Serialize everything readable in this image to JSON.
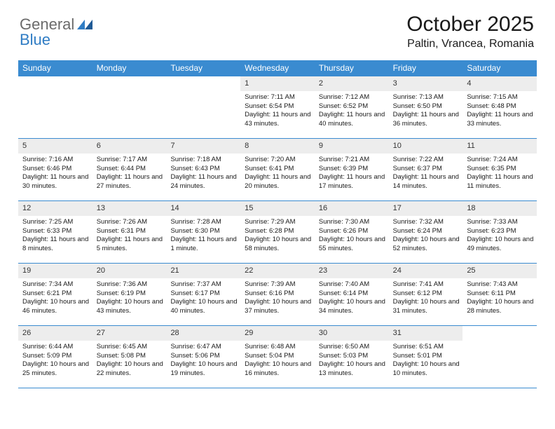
{
  "logo": {
    "part1": "General",
    "part2": "Blue"
  },
  "header": {
    "title": "October 2025",
    "location": "Paltin, Vrancea, Romania"
  },
  "colors": {
    "header_bar": "#3a8bd0",
    "day_num_bg": "#ededed",
    "week_divider": "#3a8bd0",
    "text": "#1a1a1a",
    "logo_text": "#6b6b6b",
    "logo_blue": "#2f7cc4"
  },
  "typography": {
    "title_fontsize": 30,
    "location_fontsize": 16,
    "dow_fontsize": 12,
    "daynum_fontsize": 11,
    "body_fontsize": 9.5
  },
  "daysOfWeek": [
    "Sunday",
    "Monday",
    "Tuesday",
    "Wednesday",
    "Thursday",
    "Friday",
    "Saturday"
  ],
  "weeks": [
    [
      {
        "num": "",
        "sunrise": "",
        "sunset": "",
        "daylight": ""
      },
      {
        "num": "",
        "sunrise": "",
        "sunset": "",
        "daylight": ""
      },
      {
        "num": "",
        "sunrise": "",
        "sunset": "",
        "daylight": ""
      },
      {
        "num": "1",
        "sunrise": "Sunrise: 7:11 AM",
        "sunset": "Sunset: 6:54 PM",
        "daylight": "Daylight: 11 hours and 43 minutes."
      },
      {
        "num": "2",
        "sunrise": "Sunrise: 7:12 AM",
        "sunset": "Sunset: 6:52 PM",
        "daylight": "Daylight: 11 hours and 40 minutes."
      },
      {
        "num": "3",
        "sunrise": "Sunrise: 7:13 AM",
        "sunset": "Sunset: 6:50 PM",
        "daylight": "Daylight: 11 hours and 36 minutes."
      },
      {
        "num": "4",
        "sunrise": "Sunrise: 7:15 AM",
        "sunset": "Sunset: 6:48 PM",
        "daylight": "Daylight: 11 hours and 33 minutes."
      }
    ],
    [
      {
        "num": "5",
        "sunrise": "Sunrise: 7:16 AM",
        "sunset": "Sunset: 6:46 PM",
        "daylight": "Daylight: 11 hours and 30 minutes."
      },
      {
        "num": "6",
        "sunrise": "Sunrise: 7:17 AM",
        "sunset": "Sunset: 6:44 PM",
        "daylight": "Daylight: 11 hours and 27 minutes."
      },
      {
        "num": "7",
        "sunrise": "Sunrise: 7:18 AM",
        "sunset": "Sunset: 6:43 PM",
        "daylight": "Daylight: 11 hours and 24 minutes."
      },
      {
        "num": "8",
        "sunrise": "Sunrise: 7:20 AM",
        "sunset": "Sunset: 6:41 PM",
        "daylight": "Daylight: 11 hours and 20 minutes."
      },
      {
        "num": "9",
        "sunrise": "Sunrise: 7:21 AM",
        "sunset": "Sunset: 6:39 PM",
        "daylight": "Daylight: 11 hours and 17 minutes."
      },
      {
        "num": "10",
        "sunrise": "Sunrise: 7:22 AM",
        "sunset": "Sunset: 6:37 PM",
        "daylight": "Daylight: 11 hours and 14 minutes."
      },
      {
        "num": "11",
        "sunrise": "Sunrise: 7:24 AM",
        "sunset": "Sunset: 6:35 PM",
        "daylight": "Daylight: 11 hours and 11 minutes."
      }
    ],
    [
      {
        "num": "12",
        "sunrise": "Sunrise: 7:25 AM",
        "sunset": "Sunset: 6:33 PM",
        "daylight": "Daylight: 11 hours and 8 minutes."
      },
      {
        "num": "13",
        "sunrise": "Sunrise: 7:26 AM",
        "sunset": "Sunset: 6:31 PM",
        "daylight": "Daylight: 11 hours and 5 minutes."
      },
      {
        "num": "14",
        "sunrise": "Sunrise: 7:28 AM",
        "sunset": "Sunset: 6:30 PM",
        "daylight": "Daylight: 11 hours and 1 minute."
      },
      {
        "num": "15",
        "sunrise": "Sunrise: 7:29 AM",
        "sunset": "Sunset: 6:28 PM",
        "daylight": "Daylight: 10 hours and 58 minutes."
      },
      {
        "num": "16",
        "sunrise": "Sunrise: 7:30 AM",
        "sunset": "Sunset: 6:26 PM",
        "daylight": "Daylight: 10 hours and 55 minutes."
      },
      {
        "num": "17",
        "sunrise": "Sunrise: 7:32 AM",
        "sunset": "Sunset: 6:24 PM",
        "daylight": "Daylight: 10 hours and 52 minutes."
      },
      {
        "num": "18",
        "sunrise": "Sunrise: 7:33 AM",
        "sunset": "Sunset: 6:23 PM",
        "daylight": "Daylight: 10 hours and 49 minutes."
      }
    ],
    [
      {
        "num": "19",
        "sunrise": "Sunrise: 7:34 AM",
        "sunset": "Sunset: 6:21 PM",
        "daylight": "Daylight: 10 hours and 46 minutes."
      },
      {
        "num": "20",
        "sunrise": "Sunrise: 7:36 AM",
        "sunset": "Sunset: 6:19 PM",
        "daylight": "Daylight: 10 hours and 43 minutes."
      },
      {
        "num": "21",
        "sunrise": "Sunrise: 7:37 AM",
        "sunset": "Sunset: 6:17 PM",
        "daylight": "Daylight: 10 hours and 40 minutes."
      },
      {
        "num": "22",
        "sunrise": "Sunrise: 7:39 AM",
        "sunset": "Sunset: 6:16 PM",
        "daylight": "Daylight: 10 hours and 37 minutes."
      },
      {
        "num": "23",
        "sunrise": "Sunrise: 7:40 AM",
        "sunset": "Sunset: 6:14 PM",
        "daylight": "Daylight: 10 hours and 34 minutes."
      },
      {
        "num": "24",
        "sunrise": "Sunrise: 7:41 AM",
        "sunset": "Sunset: 6:12 PM",
        "daylight": "Daylight: 10 hours and 31 minutes."
      },
      {
        "num": "25",
        "sunrise": "Sunrise: 7:43 AM",
        "sunset": "Sunset: 6:11 PM",
        "daylight": "Daylight: 10 hours and 28 minutes."
      }
    ],
    [
      {
        "num": "26",
        "sunrise": "Sunrise: 6:44 AM",
        "sunset": "Sunset: 5:09 PM",
        "daylight": "Daylight: 10 hours and 25 minutes."
      },
      {
        "num": "27",
        "sunrise": "Sunrise: 6:45 AM",
        "sunset": "Sunset: 5:08 PM",
        "daylight": "Daylight: 10 hours and 22 minutes."
      },
      {
        "num": "28",
        "sunrise": "Sunrise: 6:47 AM",
        "sunset": "Sunset: 5:06 PM",
        "daylight": "Daylight: 10 hours and 19 minutes."
      },
      {
        "num": "29",
        "sunrise": "Sunrise: 6:48 AM",
        "sunset": "Sunset: 5:04 PM",
        "daylight": "Daylight: 10 hours and 16 minutes."
      },
      {
        "num": "30",
        "sunrise": "Sunrise: 6:50 AM",
        "sunset": "Sunset: 5:03 PM",
        "daylight": "Daylight: 10 hours and 13 minutes."
      },
      {
        "num": "31",
        "sunrise": "Sunrise: 6:51 AM",
        "sunset": "Sunset: 5:01 PM",
        "daylight": "Daylight: 10 hours and 10 minutes."
      },
      {
        "num": "",
        "sunrise": "",
        "sunset": "",
        "daylight": ""
      }
    ]
  ]
}
